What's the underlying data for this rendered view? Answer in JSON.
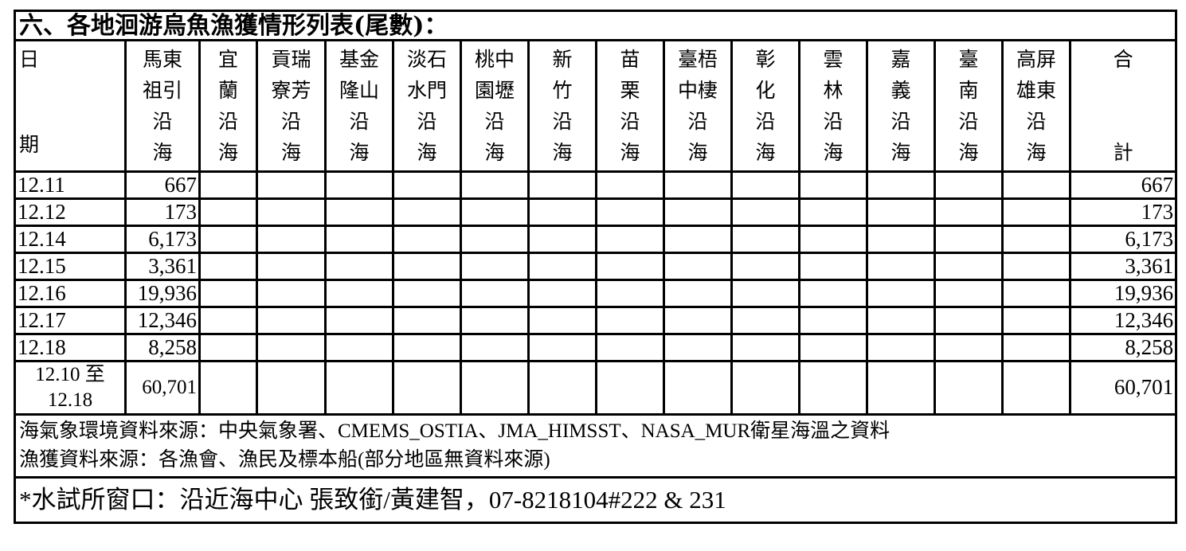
{
  "title": "六、各地洄游烏魚漁獲情形列表(尾數)：",
  "date_header": {
    "top": "日",
    "bottom": "期"
  },
  "columns": [
    "馬東\n祖引\n沿\n海",
    "宜\n蘭\n沿\n海",
    "貢瑞\n寮芳\n沿\n海",
    "基金\n隆山\n沿\n海",
    "淡石\n水門\n沿\n海",
    "桃中\n園壢\n沿\n海",
    "新\n竹\n沿\n海",
    "苗\n栗\n沿\n海",
    "臺梧\n中棲\n沿\n海",
    "彰\n化\n沿\n海",
    "雲\n林\n沿\n海",
    "嘉\n義\n沿\n海",
    "臺\n南\n沿\n海",
    "高屏\n雄東\n沿\n海",
    "合\n\n\n計"
  ],
  "rows": [
    {
      "date": "12.11",
      "values": [
        "667",
        "",
        "",
        "",
        "",
        "",
        "",
        "",
        "",
        "",
        "",
        "",
        "",
        "",
        ""
      ],
      "total": "667"
    },
    {
      "date": "12.12",
      "values": [
        "173",
        "",
        "",
        "",
        "",
        "",
        "",
        "",
        "",
        "",
        "",
        "",
        "",
        "",
        ""
      ],
      "total": "173"
    },
    {
      "date": "12.14",
      "values": [
        "6,173",
        "",
        "",
        "",
        "",
        "",
        "",
        "",
        "",
        "",
        "",
        "",
        "",
        "",
        ""
      ],
      "total": "6,173"
    },
    {
      "date": "12.15",
      "values": [
        "3,361",
        "",
        "",
        "",
        "",
        "",
        "",
        "",
        "",
        "",
        "",
        "",
        "",
        "",
        ""
      ],
      "total": "3,361"
    },
    {
      "date": "12.16",
      "values": [
        "19,936",
        "",
        "",
        "",
        "",
        "",
        "",
        "",
        "",
        "",
        "",
        "",
        "",
        "",
        ""
      ],
      "total": "19,936"
    },
    {
      "date": "12.17",
      "values": [
        "12,346",
        "",
        "",
        "",
        "",
        "",
        "",
        "",
        "",
        "",
        "",
        "",
        "",
        "",
        ""
      ],
      "total": "12,346"
    },
    {
      "date": "12.18",
      "values": [
        "8,258",
        "",
        "",
        "",
        "",
        "",
        "",
        "",
        "",
        "",
        "",
        "",
        "",
        "",
        ""
      ],
      "total": "8,258"
    }
  ],
  "summary": {
    "date": "12.10 至\n12.18",
    "values": [
      "60,701",
      "",
      "",
      "",
      "",
      "",
      "",
      "",
      "",
      "",
      "",
      "",
      "",
      "",
      ""
    ],
    "total": "60,701"
  },
  "notes": [
    "海氣象環境資料來源：中央氣象署、CMEMS_OSTIA、JMA_HIMSST、NASA_MUR衛星海溫之資料",
    "漁獲資料來源：各漁會、漁民及標本船(部分地區無資料來源)"
  ],
  "contact": "*水試所窗口：沿近海中心  張致銜/黃建智，07-8218104#222 & 231"
}
